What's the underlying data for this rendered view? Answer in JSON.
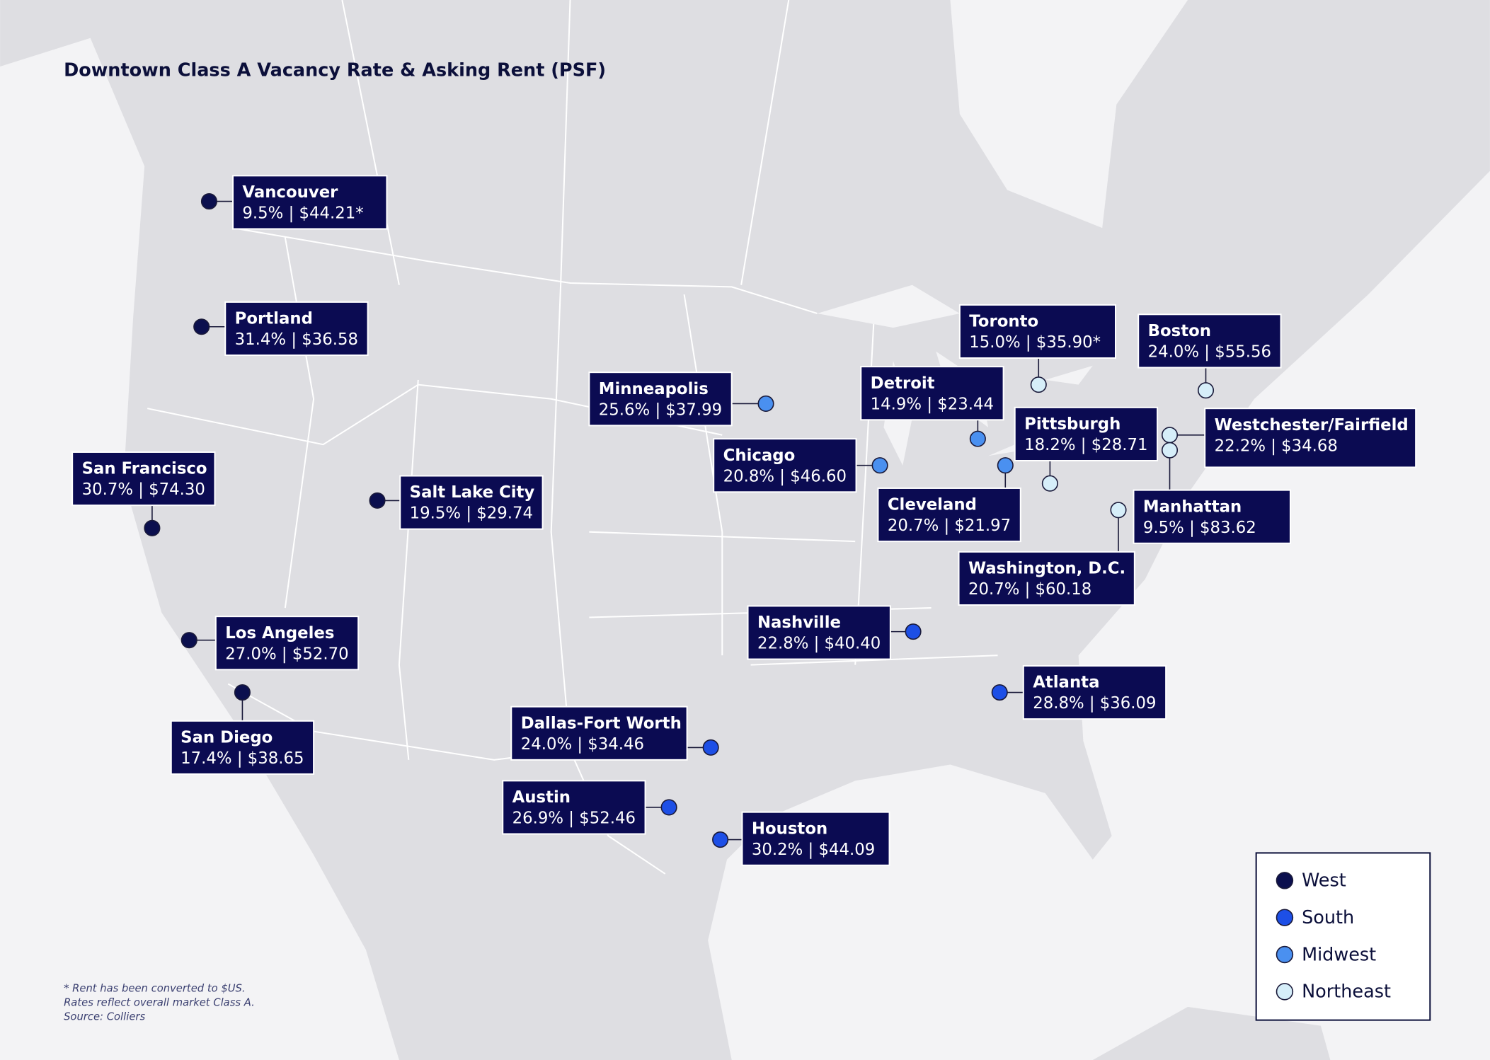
{
  "title": "Downtown Class A Vacancy Rate & Asking Rent (PSF)",
  "cities": [
    {
      "name": "Vancouver",
      "stats": "9.5% | $44.21*",
      "color": "#0b0f4e"
    },
    {
      "name": "Portland",
      "stats": "31.4% | $36.58",
      "color": "#0b0f4e"
    },
    {
      "name": "San Francisco",
      "stats": "30.7% | $74.30",
      "color": "#0b0f4e"
    },
    {
      "name": "Salt Lake City",
      "stats": "19.5% | $29.74",
      "color": "#0b0f4e"
    },
    {
      "name": "Los Angeles",
      "stats": "27.0% | $52.70",
      "color": "#0b0f4e"
    },
    {
      "name": "San Diego",
      "stats": "17.4% | $38.65",
      "color": "#0b0f4e"
    },
    {
      "name": "Minneapolis",
      "stats": "25.6% | $37.99",
      "color": "#4a90f0"
    },
    {
      "name": "Chicago",
      "stats": "20.8% | $46.60",
      "color": "#4a90f0"
    },
    {
      "name": "Detroit",
      "stats": "14.9% | $23.44",
      "color": "#4a90f0"
    },
    {
      "name": "Toronto",
      "stats": "15.0% | $35.90*",
      "color": "#d6eef9"
    },
    {
      "name": "Cleveland",
      "stats": "20.7% | $21.97",
      "color": "#4a90f0"
    },
    {
      "name": "Pittsburgh",
      "stats": "18.2% | $28.71",
      "color": "#d6eef9"
    },
    {
      "name": "Boston",
      "stats": "24.0% | $55.56",
      "color": "#d6eef9"
    },
    {
      "name": "Westchester/Fairfield",
      "stats": "22.2% | $34.68",
      "color": "#d6eef9"
    },
    {
      "name": "Manhattan",
      "stats": "9.5% | $83.62",
      "color": "#d6eef9"
    },
    {
      "name": "Washington, D.C.",
      "stats": "20.7% | $60.18",
      "color": "#d6eef9"
    },
    {
      "name": "Nashville",
      "stats": "22.8% | $40.40",
      "color": "#1d4fe6"
    },
    {
      "name": "Atlanta",
      "stats": "28.8% | $36.09",
      "color": "#1d4fe6"
    },
    {
      "name": "Dallas-Fort Worth",
      "stats": "24.0% | $34.46",
      "color": "#1d4fe6"
    },
    {
      "name": "Austin",
      "stats": "26.9% | $52.46",
      "color": "#1d4fe6"
    },
    {
      "name": "Houston",
      "stats": "30.2% | $44.09",
      "color": "#1d4fe6"
    }
  ],
  "legend": [
    {
      "label": "West",
      "color": "#0b0f4e"
    },
    {
      "label": "South",
      "color": "#1d4fe6"
    },
    {
      "label": "Midwest",
      "color": "#4a90f0"
    },
    {
      "label": "Northeast",
      "color": "#d6eef9"
    }
  ],
  "footnote": [
    "* Rent has been converted to $US.",
    "Rates reflect overall market Class A.",
    "Source: Colliers"
  ]
}
